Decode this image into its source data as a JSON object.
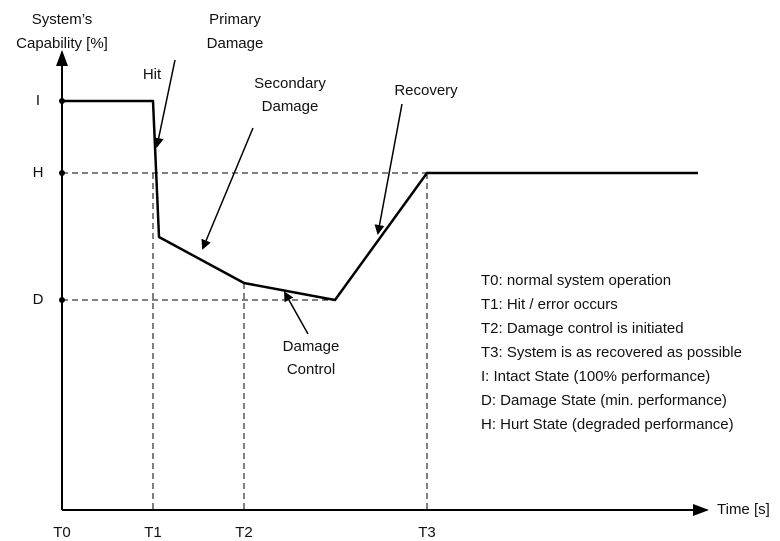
{
  "y_axis": {
    "label": [
      "System’s",
      "Capability [%]"
    ],
    "levels": [
      "I",
      "H",
      "D"
    ]
  },
  "x_axis": {
    "label": "Time [s]",
    "times": [
      "T0",
      "T1",
      "T2",
      "T3"
    ]
  },
  "annotations": {
    "hit": "Hit",
    "primary_damage": [
      "Primary",
      "Damage"
    ],
    "secondary_damage": [
      "Secondary",
      "Damage"
    ],
    "recovery": "Recovery",
    "damage_control": [
      "Damage",
      "Control"
    ]
  },
  "legend": [
    "T0: normal system operation",
    "T1: Hit / error occurs",
    "T2: Damage control is initiated",
    "T3: System is as recovered as possible",
    "I: Intact State (100% performance)",
    "D: Damage State (min. performance)",
    "H: Hurt State (degraded performance)"
  ]
}
